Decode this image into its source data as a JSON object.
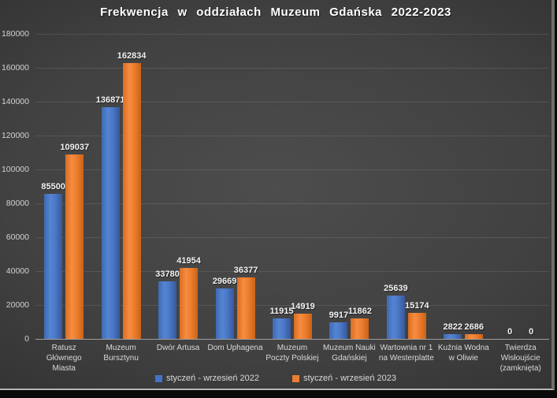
{
  "chart_data": {
    "type": "bar",
    "title": "Frekwencja w oddziałach Muzeum Gdańska 2022-2023",
    "xlabel": "",
    "ylabel": "",
    "categories": [
      "Ratusz Głównego Miasta",
      "Muzeum Bursztynu",
      "Dwór Artusa",
      "Dom Uphagena",
      "Muzeum Poczty Polskiej",
      "Muzeum Nauki Gdańskiej",
      "Wartownia nr 1 na Westerplatte",
      "Kuźnia Wodna w Oliwie",
      "Twierdza Wisłoujście (zamknięta)"
    ],
    "series": [
      {
        "name": "styczeń - wrzesień 2022",
        "color": "#4472C4",
        "values": [
          85500,
          136871,
          33780,
          29669,
          11915,
          9917,
          25639,
          2822,
          0
        ]
      },
      {
        "name": "styczeń - wrzesień 2023",
        "color": "#ED7D31",
        "values": [
          109037,
          162834,
          41954,
          36377,
          14919,
          11862,
          15174,
          2686,
          0
        ]
      }
    ],
    "ylim": [
      0,
      180000
    ],
    "yticks": [
      0,
      20000,
      40000,
      60000,
      80000,
      100000,
      120000,
      140000,
      160000,
      180000
    ],
    "grid": true,
    "legend_position": "bottom",
    "colors": {
      "background_center": "#4d4d4d",
      "background_edge": "#262626",
      "gridline": "#545454",
      "axis_line": "#9e9e9e",
      "text": "#d9d9d9",
      "title_text": "#ffffff"
    }
  }
}
